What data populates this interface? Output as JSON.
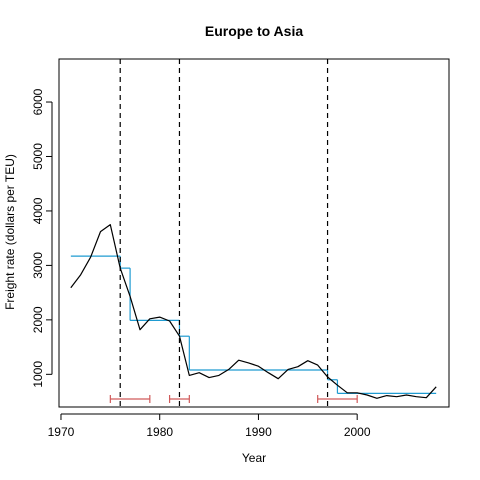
{
  "chart_data": {
    "type": "line",
    "title": "Europe to Asia",
    "xlabel": "Year",
    "ylabel": "Freight rate (dollars per TEU)",
    "xlim": [
      1969.8,
      2009.3
    ],
    "ylim": [
      400,
      6790
    ],
    "x_ticks": [
      1970,
      1980,
      1990,
      2000
    ],
    "y_ticks": [
      1000,
      2000,
      3000,
      4000,
      5000,
      6000
    ],
    "colors": {
      "rate_line": "#000000",
      "fitted_segments": "#1f9bd1",
      "breakpoint_lines": "#000000",
      "confidence_intervals": "#d05a5a"
    },
    "series": [
      {
        "x": [
          1971,
          1972,
          1973,
          1974,
          1975,
          1976,
          1977,
          1978,
          1979,
          1980,
          1981,
          1982,
          1983,
          1984,
          1985,
          1986,
          1987,
          1988,
          1989,
          1990,
          1991,
          1992,
          1993,
          1994,
          1995,
          1996,
          1997,
          1998,
          1999,
          2000,
          2001,
          2002,
          2003,
          2004,
          2005,
          2006,
          2007,
          2008
        ],
        "y": [
          2590,
          2830,
          3150,
          3620,
          3750,
          2950,
          2430,
          1820,
          2020,
          2050,
          1980,
          1700,
          980,
          1030,
          940,
          980,
          1090,
          1260,
          1210,
          1150,
          1030,
          920,
          1090,
          1140,
          1250,
          1170,
          950,
          800,
          660,
          660,
          620,
          560,
          610,
          590,
          620,
          590,
          570,
          770
        ]
      }
    ],
    "fitted_segments": [
      {
        "x_start": 1971,
        "x_end": 1976,
        "y": 3170
      },
      {
        "x_start": 1976,
        "x_end": 1977,
        "y": 2950
      },
      {
        "x_start": 1977,
        "x_end": 1982,
        "y": 1990
      },
      {
        "x_start": 1982,
        "x_end": 1983,
        "y": 1700
      },
      {
        "x_start": 1983,
        "x_end": 1997,
        "y": 1080
      },
      {
        "x_start": 1997,
        "x_end": 1998,
        "y": 900
      },
      {
        "x_start": 1998,
        "x_end": 2008,
        "y": 650
      }
    ],
    "breakpoints": [
      1976,
      1982,
      1997
    ],
    "confidence_intervals": [
      {
        "low": 1975,
        "high": 1979
      },
      {
        "low": 1981,
        "high": 1983
      },
      {
        "low": 1996,
        "high": 2000
      }
    ]
  }
}
